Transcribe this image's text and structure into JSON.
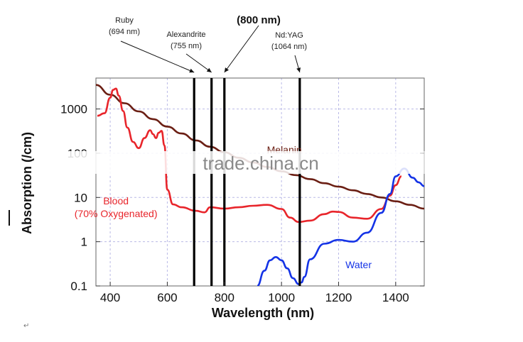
{
  "chart_data": {
    "type": "line",
    "title": "",
    "xlabel": "Wavelength (nm)",
    "ylabel": "Absorption (/cm)",
    "xlim": [
      350,
      1500
    ],
    "ylim": [
      0.1,
      5000
    ],
    "y_scale": "log",
    "x_ticks": [
      400,
      600,
      800,
      1000,
      1200,
      1400
    ],
    "x_tick_labels": [
      "400",
      "600",
      "800",
      "1000",
      "1200",
      "1400"
    ],
    "y_ticks": [
      0.1,
      1,
      10,
      100,
      1000
    ],
    "y_tick_labels": [
      "0.1",
      "1",
      "10",
      "100",
      "1000"
    ],
    "grid": true,
    "series": [
      {
        "name": "Melanin",
        "color": "#6b1f14",
        "label_at": [
          1010,
          100
        ],
        "x": [
          350,
          400,
          450,
          500,
          550,
          600,
          650,
          700,
          750,
          800,
          850,
          900,
          950,
          1000,
          1050,
          1100,
          1150,
          1200,
          1250,
          1300,
          1350,
          1400,
          1450,
          1500
        ],
        "y": [
          3500,
          2100,
          1350,
          880,
          590,
          400,
          280,
          195,
          140,
          105,
          79,
          62,
          49,
          39,
          32,
          26,
          21,
          17.5,
          14.5,
          12,
          10,
          8.2,
          6.8,
          5.6
        ]
      },
      {
        "name": "Blood\n(70% Oxygenated)",
        "color": "#e8252b",
        "label_at": [
          420,
          7
        ],
        "x": [
          355,
          380,
          400,
          410,
          420,
          430,
          445,
          460,
          480,
          500,
          520,
          540,
          550,
          560,
          570,
          580,
          590,
          600,
          620,
          650,
          700,
          730,
          750,
          800,
          850,
          900,
          950,
          1000,
          1030,
          1060,
          1100,
          1150,
          1180,
          1200,
          1250,
          1300,
          1350,
          1380,
          1400,
          1420
        ],
        "y": [
          700,
          800,
          1800,
          2700,
          2900,
          2000,
          900,
          380,
          180,
          130,
          220,
          330,
          270,
          220,
          290,
          320,
          150,
          15,
          7,
          6,
          5,
          4.6,
          6,
          5.6,
          6,
          6.5,
          6.8,
          5.5,
          3.5,
          2.8,
          3,
          4.2,
          4.8,
          4.7,
          3.5,
          3.3,
          5.5,
          11,
          19,
          30
        ]
      },
      {
        "name": "Water",
        "color": "#1433e6",
        "label_at": [
          1270,
          0.25
        ],
        "x": [
          915,
          940,
          960,
          980,
          1000,
          1020,
          1040,
          1060,
          1070,
          1080,
          1100,
          1150,
          1200,
          1250,
          1300,
          1350,
          1380,
          1400,
          1430,
          1460,
          1480,
          1500
        ],
        "y": [
          0.1,
          0.22,
          0.38,
          0.45,
          0.38,
          0.25,
          0.15,
          0.11,
          0.12,
          0.16,
          0.4,
          0.9,
          1.1,
          1.0,
          1.6,
          4.5,
          12,
          30,
          45,
          28,
          22,
          18
        ]
      }
    ],
    "laser_lines": [
      {
        "name": "Ruby",
        "wavelength_text": "(694 nm)",
        "x": 694
      },
      {
        "name": "Alexandrite",
        "wavelength_text": "(755 nm)",
        "x": 755
      },
      {
        "name": "",
        "wavelength_text": "(800 nm)",
        "x": 800
      },
      {
        "name": "Nd:YAG",
        "wavelength_text": "(1064 nm)",
        "x": 1064
      }
    ],
    "annotations": [
      "Melanin",
      "Blood",
      "(70% Oxygenated)",
      "Water"
    ]
  },
  "watermark": "trade.china.cn",
  "footmark": "↵"
}
